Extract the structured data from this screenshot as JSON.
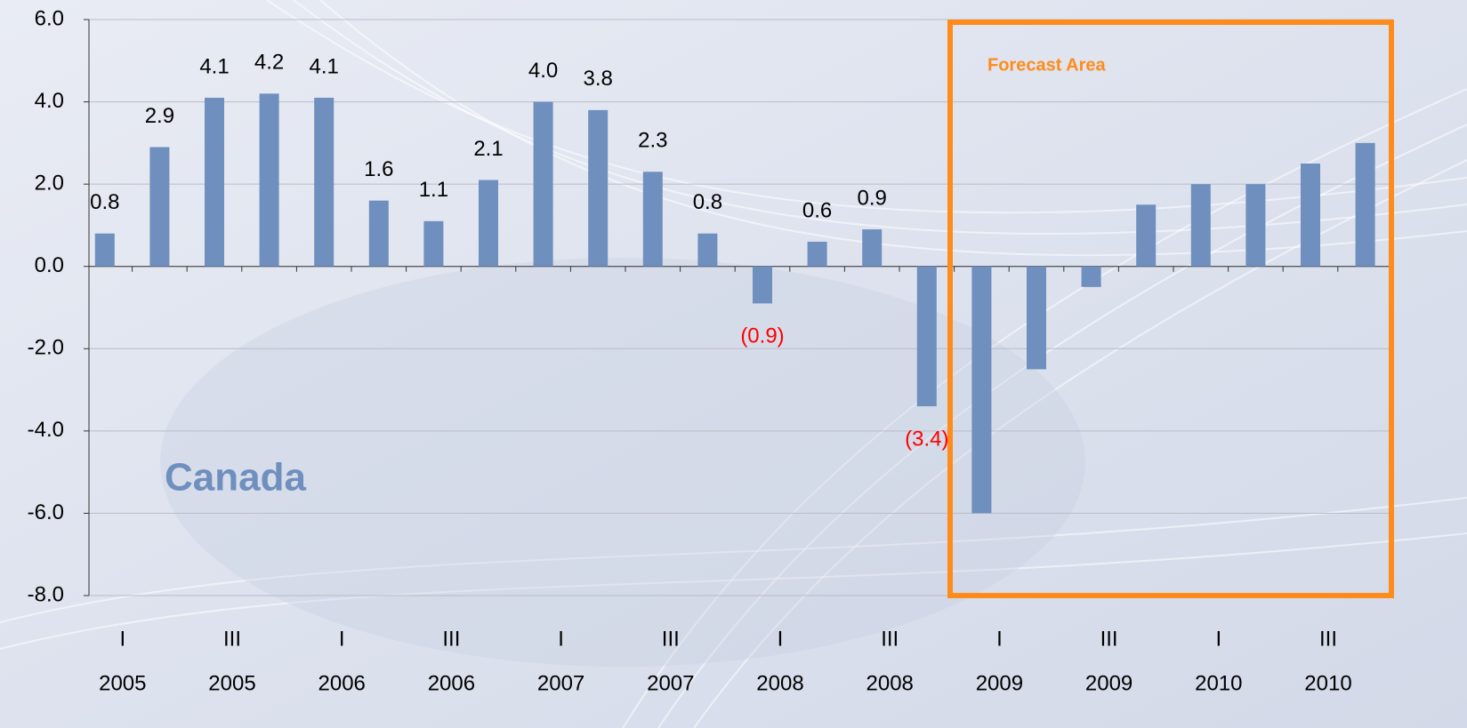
{
  "chart_data": {
    "type": "bar",
    "annotations": [
      "Canada",
      "Forecast Area"
    ],
    "categories": [
      [
        "I",
        "2005"
      ],
      null,
      [
        "III",
        "2005"
      ],
      null,
      [
        "I",
        "2006"
      ],
      null,
      [
        "III",
        "2006"
      ],
      null,
      [
        "I",
        "2007"
      ],
      null,
      [
        "III",
        "2007"
      ],
      null,
      [
        "I",
        "2008"
      ],
      null,
      [
        "III",
        "2008"
      ],
      null,
      [
        "I",
        "2009"
      ],
      null,
      [
        "III",
        "2009"
      ],
      null,
      [
        "I",
        "2010"
      ],
      null,
      [
        "III",
        "2010"
      ],
      null
    ],
    "values": [
      0.8,
      2.9,
      4.1,
      4.2,
      4.1,
      1.6,
      1.1,
      2.1,
      4.0,
      3.8,
      2.3,
      0.8,
      -0.9,
      0.6,
      0.9,
      -3.4,
      -6.0,
      -2.5,
      -0.5,
      1.5,
      2.0,
      2.0,
      2.5,
      3.0
    ],
    "value_labels": [
      "0.8",
      "2.9",
      "4.1",
      "4.2",
      "4.1",
      "1.6",
      "1.1",
      "2.1",
      "4.0",
      "3.8",
      "2.3",
      "0.8",
      "(0.9)",
      "0.6",
      "0.9",
      "(3.4)",
      null,
      null,
      null,
      null,
      null,
      null,
      null,
      null
    ],
    "color": "#6f8fbe",
    "label_color": "#000000",
    "negative_label_color": "#ff0000",
    "ylim": [
      -8,
      6
    ],
    "yticks": [
      {
        "value": -8,
        "label": "-8.0"
      },
      {
        "value": -6,
        "label": "-6.0"
      },
      {
        "value": -4,
        "label": "-4.0"
      },
      {
        "value": -2,
        "label": "-2.0"
      },
      {
        "value": 0,
        "label": "0.0"
      },
      {
        "value": 2,
        "label": "2.0"
      },
      {
        "value": 4,
        "label": "4.0"
      },
      {
        "value": 6,
        "label": "6.0"
      }
    ],
    "grid": true
  }
}
